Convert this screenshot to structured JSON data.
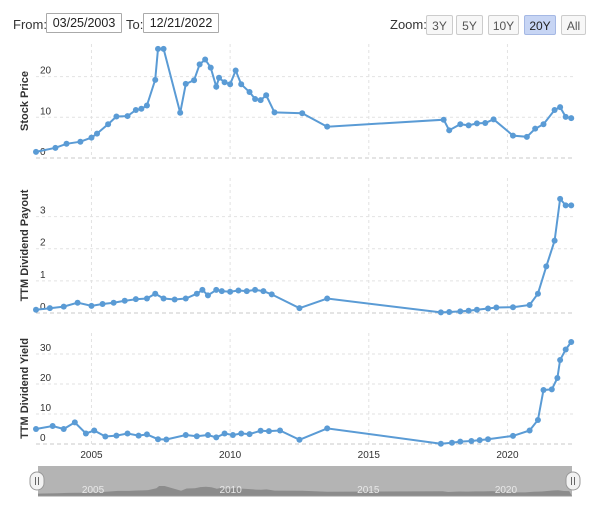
{
  "range": {
    "from_label": "From:",
    "from_value": "03/25/2003",
    "to_label": "To:",
    "to_value": "12/21/2022"
  },
  "zoom": {
    "label": "Zoom:",
    "buttons": [
      "3Y",
      "5Y",
      "10Y",
      "20Y",
      "All"
    ],
    "active": "20Y"
  },
  "colors": {
    "series": "#5a9bd5",
    "active_button": "#c7d5f4"
  },
  "chart_data": {
    "type": "line",
    "x_axis": {
      "ticks": [
        "2005",
        "2010",
        "2015",
        "2020"
      ],
      "range": [
        2003.0,
        2022.4
      ]
    },
    "navigator_ticks": [
      "2005",
      "2010",
      "2015",
      "2020"
    ],
    "grid": true,
    "panels": [
      {
        "ylabel": "Stock Price",
        "ylim": [
          0,
          28
        ],
        "yticks": [
          0,
          10,
          20
        ],
        "values": [
          [
            2003.0,
            1.5
          ],
          [
            2003.7,
            2.5
          ],
          [
            2004.1,
            3.5
          ],
          [
            2004.6,
            4.0
          ],
          [
            2005.0,
            5.0
          ],
          [
            2005.2,
            6.0
          ],
          [
            2005.6,
            8.3
          ],
          [
            2005.9,
            10.2
          ],
          [
            2006.3,
            10.3
          ],
          [
            2006.6,
            11.8
          ],
          [
            2006.8,
            12.1
          ],
          [
            2007.0,
            12.9
          ],
          [
            2007.3,
            19.2
          ],
          [
            2007.4,
            26.8
          ],
          [
            2007.6,
            26.8
          ],
          [
            2008.2,
            11.1
          ],
          [
            2008.4,
            18.2
          ],
          [
            2008.7,
            19.1
          ],
          [
            2008.9,
            23.0
          ],
          [
            2009.1,
            24.2
          ],
          [
            2009.3,
            22.2
          ],
          [
            2009.5,
            17.5
          ],
          [
            2009.6,
            19.7
          ],
          [
            2009.8,
            18.6
          ],
          [
            2010.0,
            18.1
          ],
          [
            2010.2,
            21.5
          ],
          [
            2010.4,
            18.1
          ],
          [
            2010.7,
            16.2
          ],
          [
            2010.9,
            14.5
          ],
          [
            2011.1,
            14.2
          ],
          [
            2011.3,
            15.4
          ],
          [
            2011.6,
            11.2
          ],
          [
            2012.6,
            11.0
          ],
          [
            2013.5,
            7.7
          ],
          [
            2017.7,
            9.4
          ],
          [
            2017.9,
            6.8
          ],
          [
            2018.3,
            8.3
          ],
          [
            2018.6,
            8.0
          ],
          [
            2018.9,
            8.5
          ],
          [
            2019.2,
            8.6
          ],
          [
            2019.5,
            9.5
          ],
          [
            2020.2,
            5.5
          ],
          [
            2020.7,
            5.2
          ],
          [
            2021.0,
            7.2
          ],
          [
            2021.3,
            8.3
          ],
          [
            2021.7,
            11.8
          ],
          [
            2021.9,
            12.5
          ],
          [
            2022.1,
            10.1
          ],
          [
            2022.3,
            9.8
          ]
        ]
      },
      {
        "ylabel": "TTM Dividend Payout",
        "ylim": [
          0,
          4.2
        ],
        "yticks": [
          0,
          1,
          2,
          3
        ],
        "values": [
          [
            2003.0,
            0.1
          ],
          [
            2003.5,
            0.15
          ],
          [
            2004.0,
            0.2
          ],
          [
            2004.5,
            0.32
          ],
          [
            2005.0,
            0.22
          ],
          [
            2005.4,
            0.28
          ],
          [
            2005.8,
            0.32
          ],
          [
            2006.2,
            0.38
          ],
          [
            2006.6,
            0.43
          ],
          [
            2007.0,
            0.45
          ],
          [
            2007.3,
            0.6
          ],
          [
            2007.6,
            0.45
          ],
          [
            2008.0,
            0.42
          ],
          [
            2008.4,
            0.45
          ],
          [
            2008.8,
            0.6
          ],
          [
            2009.0,
            0.72
          ],
          [
            2009.2,
            0.55
          ],
          [
            2009.5,
            0.72
          ],
          [
            2009.7,
            0.68
          ],
          [
            2010.0,
            0.66
          ],
          [
            2010.3,
            0.7
          ],
          [
            2010.6,
            0.68
          ],
          [
            2010.9,
            0.72
          ],
          [
            2011.2,
            0.68
          ],
          [
            2011.5,
            0.58
          ],
          [
            2012.5,
            0.15
          ],
          [
            2013.5,
            0.45
          ],
          [
            2017.6,
            0.02
          ],
          [
            2017.9,
            0.03
          ],
          [
            2018.3,
            0.05
          ],
          [
            2018.6,
            0.07
          ],
          [
            2018.9,
            0.1
          ],
          [
            2019.3,
            0.14
          ],
          [
            2019.6,
            0.17
          ],
          [
            2020.2,
            0.18
          ],
          [
            2020.8,
            0.25
          ],
          [
            2021.1,
            0.6
          ],
          [
            2021.4,
            1.45
          ],
          [
            2021.7,
            2.25
          ],
          [
            2021.9,
            3.55
          ],
          [
            2022.1,
            3.35
          ],
          [
            2022.3,
            3.35
          ]
        ]
      },
      {
        "ylabel": "TTM Dividend Yield",
        "ylim": [
          0,
          37
        ],
        "yticks": [
          0,
          10,
          20,
          30
        ],
        "values": [
          [
            2003.0,
            5.0
          ],
          [
            2003.6,
            6.0
          ],
          [
            2004.0,
            5.0
          ],
          [
            2004.4,
            7.2
          ],
          [
            2004.8,
            3.5
          ],
          [
            2005.1,
            4.5
          ],
          [
            2005.5,
            2.5
          ],
          [
            2005.9,
            2.8
          ],
          [
            2006.3,
            3.5
          ],
          [
            2006.7,
            2.8
          ],
          [
            2007.0,
            3.2
          ],
          [
            2007.4,
            1.6
          ],
          [
            2007.7,
            1.5
          ],
          [
            2008.4,
            3.0
          ],
          [
            2008.8,
            2.6
          ],
          [
            2009.2,
            3.0
          ],
          [
            2009.5,
            2.2
          ],
          [
            2009.8,
            3.5
          ],
          [
            2010.1,
            3.0
          ],
          [
            2010.4,
            3.5
          ],
          [
            2010.7,
            3.3
          ],
          [
            2011.1,
            4.4
          ],
          [
            2011.4,
            4.3
          ],
          [
            2011.8,
            4.5
          ],
          [
            2012.5,
            1.4
          ],
          [
            2013.5,
            5.2
          ],
          [
            2017.6,
            0.1
          ],
          [
            2018.0,
            0.4
          ],
          [
            2018.3,
            0.8
          ],
          [
            2018.7,
            1.0
          ],
          [
            2019.0,
            1.3
          ],
          [
            2019.3,
            1.6
          ],
          [
            2020.2,
            2.7
          ],
          [
            2020.8,
            4.5
          ],
          [
            2021.1,
            8.0
          ],
          [
            2021.3,
            18.0
          ],
          [
            2021.6,
            18.2
          ],
          [
            2021.8,
            22.0
          ],
          [
            2021.9,
            28.0
          ],
          [
            2022.1,
            31.5
          ],
          [
            2022.3,
            34.0
          ]
        ]
      }
    ]
  }
}
